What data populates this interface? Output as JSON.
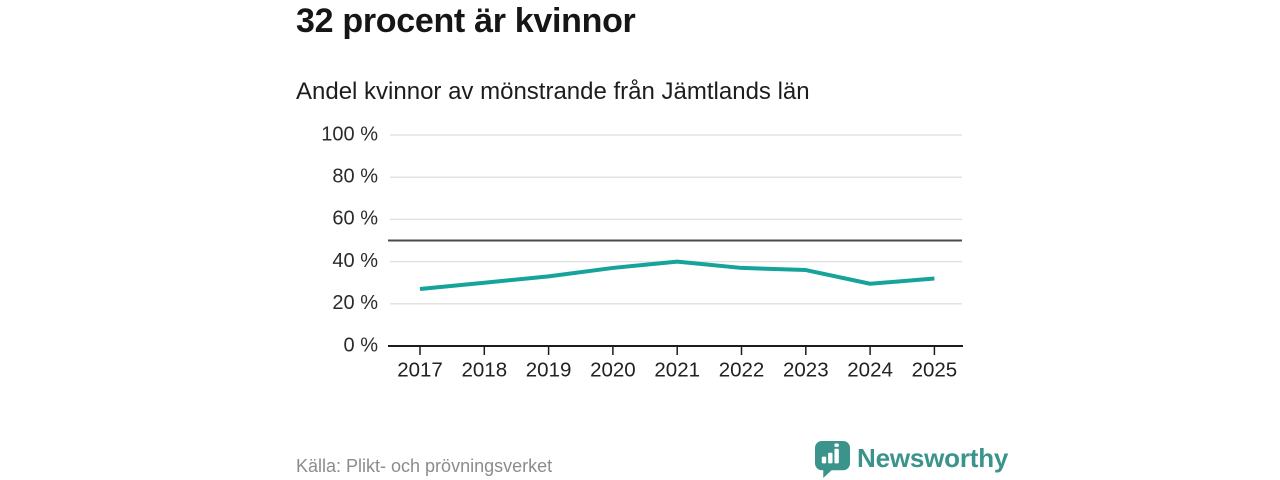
{
  "header": {
    "title": "32 procent är kvinnor",
    "subtitle": "Andel kvinnor av mönstrande från Jämtlands län"
  },
  "chart_data": {
    "type": "line",
    "title": "Andel kvinnor av mönstrande från Jämtlands län",
    "x": [
      2017,
      2018,
      2019,
      2020,
      2021,
      2022,
      2023,
      2024,
      2025
    ],
    "series": [
      {
        "name": "Andel kvinnor av mönstrande",
        "values": [
          27,
          30,
          33,
          37,
          40,
          37,
          36,
          29.5,
          32
        ],
        "color": "#15a39a"
      }
    ],
    "xlabel": "",
    "ylabel": "",
    "ylim": [
      0,
      100
    ],
    "ytick_values": [
      0,
      20,
      40,
      60,
      80,
      100
    ],
    "ytick_labels": [
      "0 %",
      "20 %",
      "40 %",
      "60 %",
      "80 %",
      "100 %"
    ],
    "xtick_labels": [
      "2017",
      "2018",
      "2019",
      "2020",
      "2021",
      "2022",
      "2023",
      "2024",
      "2025"
    ],
    "reference_line_y": 50,
    "grid": true,
    "legend_position": "none",
    "colors": {
      "grid": "#e2e2e2",
      "reference_line": "#4b4b4b",
      "axis": "#1c1c1c",
      "tick_label": "#2b2b2b"
    }
  },
  "footer": {
    "source": "Källa: Plikt- och prövningsverket",
    "brand": "Newsworthy",
    "brand_color": "#3a948c",
    "logo_icon": "bar-chart-speech-bubble-icon"
  }
}
